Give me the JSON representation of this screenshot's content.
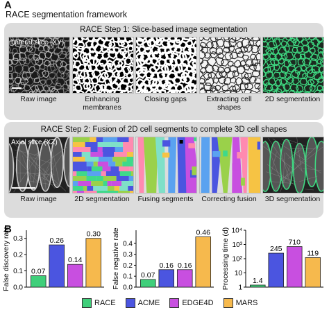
{
  "panel_a": {
    "letter": "A",
    "title": "RACE segmentation framework",
    "step1": {
      "title": "RACE Step 1: Slice-based image segmentation",
      "image_label": "Lateral slice (XY)",
      "captions": [
        "Raw image",
        "Enhancing membranes",
        "Closing gaps",
        "Extracting cell shapes",
        "2D segmentation"
      ]
    },
    "step2": {
      "title": "RACE Step 2: Fusion of 2D cell segments to complete 3D cell shapes",
      "image_label": "Axial slice (XZ)",
      "captions": [
        "Raw image",
        "2D segmentation",
        "Fusing segments",
        "Correcting fusion",
        "3D segmentation"
      ]
    }
  },
  "panel_b": {
    "letter": "B"
  },
  "legend": [
    {
      "name": "RACE",
      "color": "#3fcf7a"
    },
    {
      "name": "ACME",
      "color": "#4b55e0"
    },
    {
      "name": "EDGE4D",
      "color": "#c84fe0"
    },
    {
      "name": "MARS",
      "color": "#f6b94d"
    }
  ],
  "chart_data": [
    {
      "type": "bar",
      "ylabel": "False discovery rate",
      "categories": [
        "RACE",
        "ACME",
        "EDGE4D",
        "MARS"
      ],
      "values": [
        0.07,
        0.26,
        0.14,
        0.3
      ],
      "value_labels": [
        "0.07",
        "0.26",
        "0.14",
        "0.30"
      ],
      "yticks": [
        0.0,
        0.1,
        0.2,
        0.3
      ],
      "ytick_labels": [
        "0.0",
        "0.1",
        "0.2",
        "0.3"
      ],
      "ylim": [
        0,
        0.35
      ],
      "scale": "linear"
    },
    {
      "type": "bar",
      "ylabel": "False negative rate",
      "categories": [
        "RACE",
        "ACME",
        "EDGE4D",
        "MARS"
      ],
      "values": [
        0.07,
        0.16,
        0.16,
        0.46
      ],
      "value_labels": [
        "0.07",
        "0.16",
        "0.16",
        "0.46"
      ],
      "yticks": [
        0.0,
        0.1,
        0.2,
        0.3,
        0.4
      ],
      "ytick_labels": [
        "0.0",
        "0.1",
        "0.2",
        "0.3",
        "0.4"
      ],
      "ylim": [
        0,
        0.52
      ],
      "scale": "linear"
    },
    {
      "type": "bar",
      "ylabel": "Processing time (d)",
      "categories": [
        "RACE",
        "ACME",
        "EDGE4D",
        "MARS"
      ],
      "values": [
        1.4,
        245,
        710,
        119
      ],
      "value_labels": [
        "1.4",
        "245",
        "710",
        "119"
      ],
      "yticks": [
        1,
        10,
        100,
        1000,
        10000
      ],
      "ytick_labels": [
        "1",
        "10",
        "10²",
        "10³",
        "10⁴"
      ],
      "ylim": [
        1,
        10000
      ],
      "scale": "log"
    }
  ]
}
